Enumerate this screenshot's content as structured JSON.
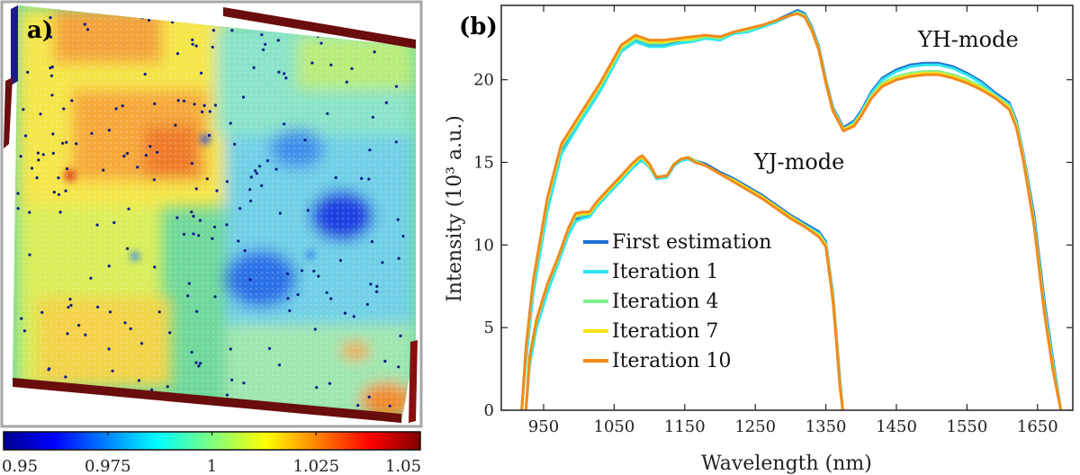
{
  "panel_a": {
    "label": "a)",
    "colorbar": {
      "min": 0.95,
      "max": 1.05,
      "ticks": [
        "0.95",
        "0.975",
        "1",
        "1.025",
        "1.05"
      ],
      "colormap": "jet"
    }
  },
  "chart_data": {
    "type": "line",
    "label": "(b)",
    "xlabel": "Wavelength (nm)",
    "ylabel": "Intensity (10³ a.u.)",
    "xlim": [
      890,
      1700
    ],
    "ylim": [
      0,
      24.5
    ],
    "xticks": [
      950,
      1050,
      1150,
      1250,
      1350,
      1450,
      1550,
      1650
    ],
    "yticks": [
      0,
      5,
      10,
      15,
      20
    ],
    "xtick_labels": [
      "950",
      "1050",
      "1150",
      "1250",
      "1350",
      "1450",
      "1550",
      "1650"
    ],
    "ytick_labels": [
      "0",
      "5",
      "10",
      "15",
      "20"
    ],
    "annotations": [
      "YH-mode",
      "YJ-mode"
    ],
    "yh_x": [
      919,
      925,
      935,
      955,
      975,
      1000,
      1030,
      1060,
      1080,
      1100,
      1120,
      1140,
      1160,
      1180,
      1200,
      1220,
      1240,
      1260,
      1280,
      1300,
      1310,
      1320,
      1330,
      1340,
      1350,
      1360,
      1375,
      1390,
      1400,
      1415,
      1430,
      1450,
      1470,
      1490,
      1510,
      1530,
      1550,
      1570,
      1590,
      1610,
      1620,
      1630,
      1645,
      1660,
      1672,
      1683
    ],
    "yj_x": [
      925,
      930,
      940,
      955,
      970,
      985,
      995,
      1005,
      1015,
      1025,
      1040,
      1060,
      1075,
      1085,
      1090,
      1100,
      1110,
      1125,
      1135,
      1145,
      1155,
      1165,
      1180,
      1200,
      1220,
      1240,
      1260,
      1280,
      1300,
      1320,
      1340,
      1350,
      1360,
      1365,
      1370,
      1374
    ],
    "legend": {
      "position": "lower-left",
      "entries": [
        "First estimation",
        "Iteration 1",
        "Iteration 4",
        "Iteration 7",
        "Iteration 10"
      ]
    },
    "series": [
      {
        "name": "First estimation",
        "color": "#1f6fd1",
        "yh": [
          0,
          3.5,
          7.5,
          12.5,
          15.8,
          17.5,
          19.5,
          21.8,
          22.4,
          22.1,
          22.1,
          22.3,
          22.4,
          22.6,
          22.5,
          22.9,
          23.0,
          23.3,
          23.6,
          24.0,
          24.2,
          24.0,
          23.2,
          22.0,
          20.0,
          18.3,
          17.1,
          17.5,
          18.1,
          19.3,
          20.1,
          20.6,
          20.9,
          21.0,
          21.0,
          20.8,
          20.4,
          19.9,
          19.2,
          18.6,
          17.5,
          15.5,
          11.8,
          6.5,
          3.0,
          0
        ],
        "yj": [
          0,
          3.0,
          5.3,
          7.4,
          9.0,
          10.8,
          11.6,
          11.7,
          11.8,
          12.4,
          13.1,
          14.0,
          14.7,
          15.1,
          15.2,
          14.8,
          14.1,
          14.2,
          14.9,
          15.2,
          15.3,
          15.1,
          14.9,
          14.4,
          14.0,
          13.5,
          13.0,
          12.4,
          11.8,
          11.3,
          10.8,
          10.2,
          7.0,
          4.5,
          1.8,
          0
        ]
      },
      {
        "name": "Iteration 1",
        "color": "#2ee5f0",
        "yh": [
          0,
          3.0,
          7.0,
          12.0,
          15.5,
          17.3,
          19.3,
          21.7,
          22.3,
          22.0,
          22.0,
          22.2,
          22.3,
          22.5,
          22.4,
          22.8,
          22.9,
          23.2,
          23.5,
          23.9,
          24.1,
          23.9,
          23.1,
          21.9,
          19.9,
          18.2,
          17.0,
          17.4,
          18.0,
          19.2,
          20.0,
          20.5,
          20.8,
          20.9,
          20.9,
          20.7,
          20.3,
          19.8,
          19.1,
          18.5,
          17.4,
          15.4,
          11.5,
          6.2,
          2.8,
          0
        ],
        "yj": [
          0,
          2.7,
          5.0,
          7.1,
          8.8,
          10.6,
          11.4,
          11.6,
          11.7,
          12.3,
          13.0,
          13.9,
          14.6,
          15.0,
          15.1,
          14.7,
          14.0,
          14.1,
          14.8,
          15.1,
          15.2,
          15.0,
          14.8,
          14.3,
          13.9,
          13.4,
          12.9,
          12.3,
          11.7,
          11.2,
          10.7,
          10.1,
          6.9,
          4.4,
          1.7,
          0
        ]
      },
      {
        "name": "Iteration 4",
        "color": "#7ef08e",
        "yh": [
          0,
          3.6,
          7.6,
          12.6,
          15.9,
          17.6,
          19.6,
          21.9,
          22.5,
          22.2,
          22.2,
          22.4,
          22.4,
          22.6,
          22.5,
          22.9,
          23.0,
          23.3,
          23.6,
          23.9,
          24.1,
          23.9,
          23.1,
          21.9,
          19.9,
          18.2,
          17.0,
          17.3,
          17.9,
          19.0,
          19.8,
          20.2,
          20.4,
          20.5,
          20.5,
          20.3,
          20.0,
          19.6,
          19.0,
          18.4,
          17.3,
          15.3,
          11.4,
          6.0,
          2.6,
          0
        ],
        "yj": [
          0,
          3.1,
          5.4,
          7.5,
          9.1,
          10.9,
          11.7,
          11.8,
          11.9,
          12.5,
          13.2,
          14.1,
          14.8,
          15.2,
          15.3,
          14.8,
          14.1,
          14.2,
          14.9,
          15.2,
          15.3,
          15.1,
          14.8,
          14.3,
          13.9,
          13.4,
          12.9,
          12.3,
          11.7,
          11.2,
          10.6,
          10.0,
          6.8,
          4.3,
          1.6,
          0
        ]
      },
      {
        "name": "Iteration 7",
        "color": "#f5e21a",
        "yh": [
          0,
          3.7,
          7.7,
          12.7,
          16.0,
          17.7,
          19.7,
          22.0,
          22.6,
          22.3,
          22.3,
          22.4,
          22.5,
          22.7,
          22.6,
          22.9,
          23.1,
          23.3,
          23.6,
          23.9,
          24.0,
          23.8,
          23.0,
          21.8,
          19.8,
          18.1,
          17.0,
          17.3,
          17.9,
          19.0,
          19.7,
          20.1,
          20.3,
          20.4,
          20.4,
          20.2,
          19.9,
          19.5,
          19.0,
          18.3,
          17.2,
          15.2,
          11.3,
          5.9,
          2.5,
          0
        ],
        "yj": [
          0,
          3.2,
          5.5,
          7.6,
          9.2,
          11.0,
          11.8,
          11.9,
          11.9,
          12.5,
          13.2,
          14.1,
          14.8,
          15.2,
          15.3,
          14.8,
          14.1,
          14.2,
          14.9,
          15.2,
          15.3,
          15.0,
          14.8,
          14.3,
          13.9,
          13.4,
          12.9,
          12.3,
          11.7,
          11.1,
          10.6,
          10.0,
          6.7,
          4.2,
          1.5,
          0
        ]
      },
      {
        "name": "Iteration 10",
        "color": "#f28a1c",
        "yh": [
          0,
          3.8,
          7.8,
          12.8,
          16.1,
          17.8,
          19.8,
          22.1,
          22.7,
          22.4,
          22.4,
          22.5,
          22.6,
          22.7,
          22.6,
          22.9,
          23.1,
          23.3,
          23.6,
          23.9,
          24.0,
          23.8,
          23.0,
          21.8,
          19.8,
          18.1,
          16.9,
          17.2,
          17.8,
          18.9,
          19.6,
          20.0,
          20.2,
          20.3,
          20.3,
          20.1,
          19.8,
          19.4,
          18.9,
          18.2,
          17.1,
          15.1,
          11.2,
          5.8,
          2.4,
          0
        ],
        "yj": [
          0,
          3.2,
          5.5,
          7.6,
          9.2,
          11.0,
          11.9,
          12.0,
          12.0,
          12.6,
          13.3,
          14.2,
          14.9,
          15.3,
          15.4,
          14.9,
          14.1,
          14.2,
          14.9,
          15.2,
          15.3,
          15.0,
          14.8,
          14.3,
          13.8,
          13.3,
          12.8,
          12.2,
          11.6,
          11.1,
          10.5,
          9.9,
          6.6,
          4.1,
          1.4,
          0
        ]
      }
    ]
  }
}
